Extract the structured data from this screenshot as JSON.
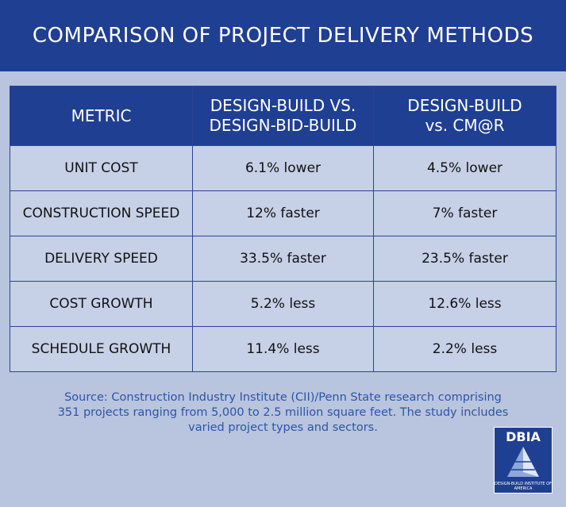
{
  "header": {
    "title": "COMPARISON OF PROJECT DELIVERY METHODS"
  },
  "table": {
    "headers": [
      [
        "METRIC"
      ],
      [
        "DESIGN-BUILD VS.",
        "DESIGN-BID-BUILD"
      ],
      [
        "DESIGN-BUILD",
        "vs. CM@R"
      ]
    ],
    "rows": [
      [
        "UNIT COST",
        "6.1% lower",
        "4.5% lower"
      ],
      [
        "CONSTRUCTION SPEED",
        "12% faster",
        "7% faster"
      ],
      [
        "DELIVERY SPEED",
        "33.5% faster",
        "23.5% faster"
      ],
      [
        "COST GROWTH",
        "5.2% less",
        "12.6% less"
      ],
      [
        "SCHEDULE GROWTH",
        "11.4% less",
        "2.2% less"
      ]
    ]
  },
  "source": [
    "Source: Construction Industry Institute (CII)/Penn State research comprising",
    "351 projects ranging from 5,000 to 2.5 million square feet. The study includes",
    "varied project types and sectors."
  ],
  "logo": {
    "name": "DBIA",
    "subtitle": "DESIGN-BUILD INSTITUTE OF AMERICA"
  }
}
